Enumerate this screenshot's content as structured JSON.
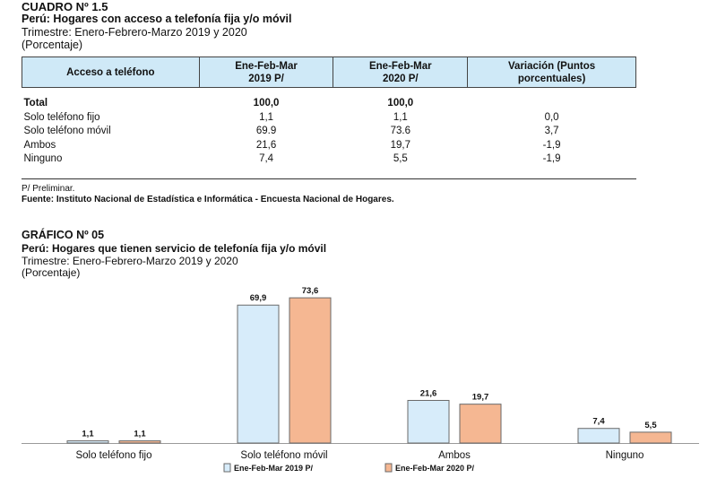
{
  "table": {
    "code": "CUADRO Nº 1.5",
    "title": "Perú: Hogares con acceso a telefonía fija y/o móvil",
    "subtitle": "Trimestre: Enero-Febrero-Marzo 2019 y 2020",
    "unit": "(Porcentaje)",
    "headers": [
      [
        "Acceso a teléfono"
      ],
      [
        "Ene-Feb-Mar",
        "2019 P/"
      ],
      [
        "Ene-Feb-Mar",
        "2020 P/"
      ],
      [
        "Variación (Puntos",
        "porcentuales)"
      ]
    ],
    "rows": [
      {
        "label": "Total",
        "v2019": "100,0",
        "v2020": "100,0",
        "var": ""
      },
      {
        "label": "Solo teléfono fijo",
        "v2019": "1,1",
        "v2020": "1,1",
        "var": "0,0"
      },
      {
        "label": "Solo teléfono móvil",
        "v2019": "69.9",
        "v2020": "73.6",
        "var": "3,7"
      },
      {
        "label": "Ambos",
        "v2019": "21,6",
        "v2020": "19,7",
        "var": "-1,9"
      },
      {
        "label": "Ninguno",
        "v2019": "7,4",
        "v2020": "5,5",
        "var": "-1,9"
      }
    ],
    "note": "P/ Preliminar.",
    "source": "Fuente: Instituto Nacional de Estadística e Informática - Encuesta Nacional de Hogares."
  },
  "graph": {
    "code": "GRÁFICO Nº 05",
    "title": "Perú: Hogares que tienen servicio de telefonía fija y/o móvil",
    "subtitle": "Trimestre: Enero-Febrero-Marzo 2019 y 2020",
    "unit": "(Porcentaje)"
  },
  "chart_data": {
    "type": "bar",
    "categories": [
      "Solo teléfono fijo",
      "Solo teléfono móvil",
      "Ambos",
      "Ninguno"
    ],
    "series": [
      {
        "name": "Ene-Feb-Mar 2019 P/",
        "values": [
          1.1,
          69.9,
          21.6,
          7.4
        ],
        "labels": [
          "1,1",
          "69,9",
          "21,6",
          "7,4"
        ],
        "color": "#d7ecfa"
      },
      {
        "name": "Ene-Feb-Mar 2020 P/",
        "values": [
          1.1,
          73.6,
          19.7,
          5.5
        ],
        "labels": [
          "1,1",
          "73,6",
          "19,7",
          "5,5"
        ],
        "color": "#f5b792"
      }
    ],
    "ylim": [
      0,
      80
    ],
    "grid": false,
    "legend": "bottom",
    "bar_stroke": "#6a6a6a"
  }
}
